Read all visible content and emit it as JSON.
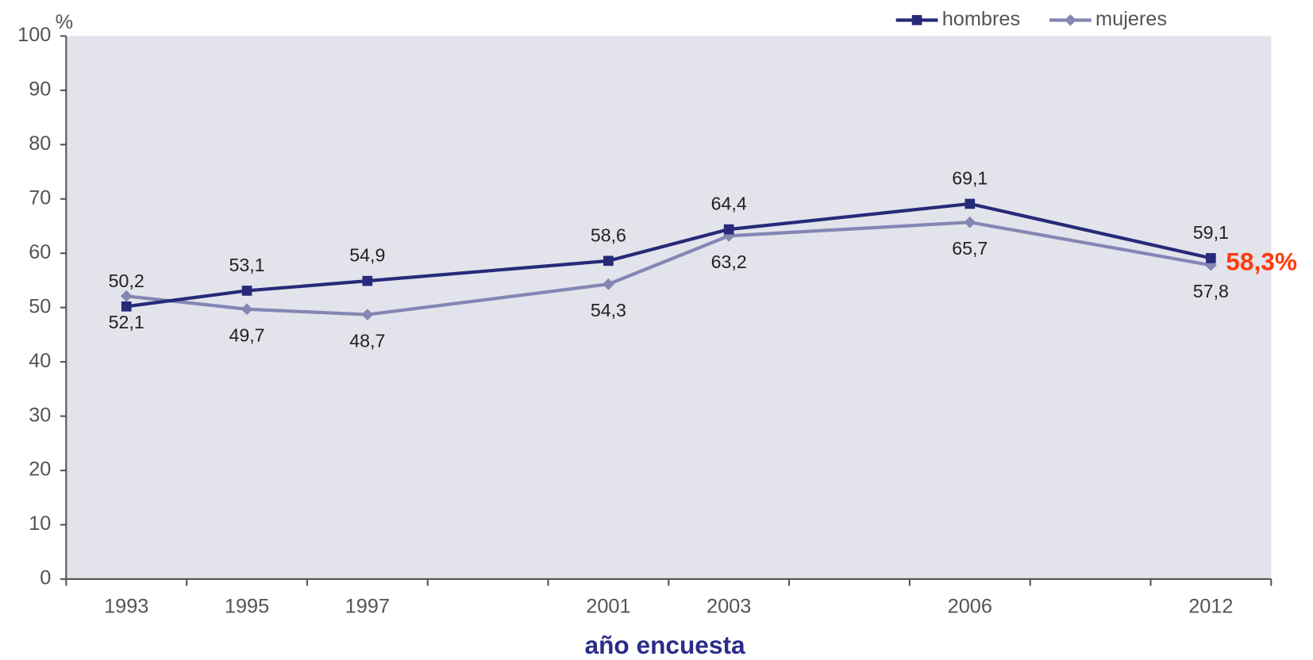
{
  "chart_data": {
    "type": "line",
    "ylabel": "%",
    "xlabel": "año encuesta",
    "annotation": "58,3%",
    "categories": [
      "1993",
      "1995",
      "1997",
      "2001",
      "2003",
      "2006",
      "2012"
    ],
    "series": [
      {
        "name": "hombres",
        "color": "#262a78",
        "marker": "square",
        "values": [
          50.2,
          53.1,
          54.9,
          58.6,
          64.4,
          69.1,
          59.1
        ],
        "value_labels": [
          "50,2",
          "53,1",
          "54,9",
          "58,6",
          "64,4",
          "69,1",
          "59,1"
        ]
      },
      {
        "name": "mujeres",
        "color": "#8486b4",
        "marker": "diamond",
        "values": [
          52.1,
          49.7,
          48.7,
          54.3,
          63.2,
          65.7,
          57.8
        ],
        "value_labels": [
          "52,1",
          "49,7",
          "48,7",
          "54,3",
          "63,2",
          "65,7",
          "57,8"
        ]
      }
    ],
    "ylim": [
      0,
      100
    ],
    "yticks": [
      0,
      10,
      20,
      30,
      40,
      50,
      60,
      70,
      80,
      90,
      100
    ],
    "legend": "top-right"
  }
}
